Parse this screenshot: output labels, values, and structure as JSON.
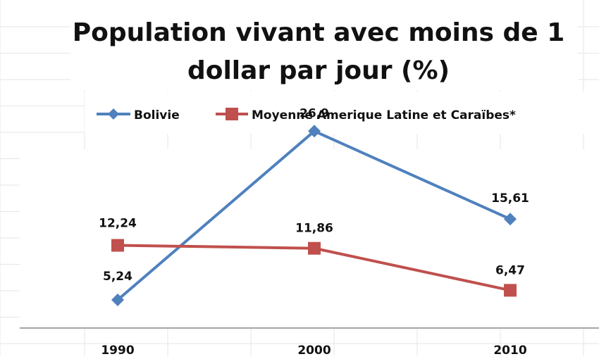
{
  "chart_data": {
    "type": "line",
    "title": "Population vivant avec moins de 1 dollar par jour (%)",
    "title_lines": [
      "Population vivant avec moins de 1",
      "dollar par jour (%)"
    ],
    "categories": [
      "1990",
      "2000",
      "2010"
    ],
    "series": [
      {
        "name": "Bolivie",
        "values": [
          5.24,
          26.9,
          15.61
        ],
        "labels": [
          "5,24",
          "26,9",
          "15,61"
        ],
        "color": "#4f81bd",
        "marker": "diamond"
      },
      {
        "name": "Moyenne Amerique Latine et Caraïbes*",
        "values": [
          12.24,
          11.86,
          6.47
        ],
        "labels": [
          "12,24",
          "11,86",
          "6,47"
        ],
        "color": "#c0504d",
        "marker": "square"
      }
    ],
    "xlabel": "",
    "ylabel": "",
    "ylim": [
      0,
      30
    ],
    "grid": false,
    "legend": "top"
  }
}
